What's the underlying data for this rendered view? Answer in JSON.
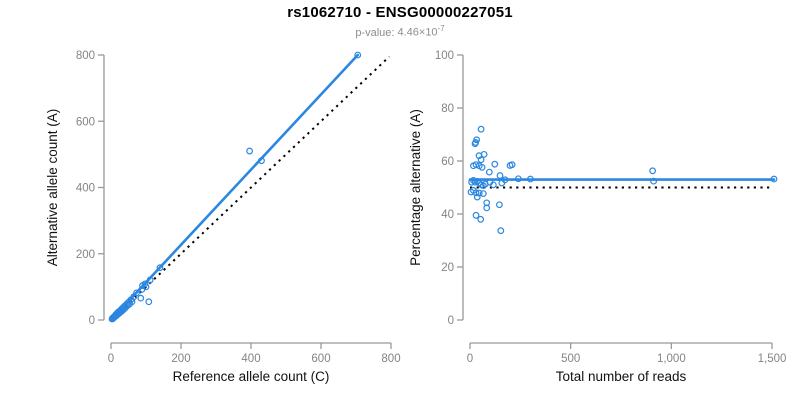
{
  "header": {
    "title": "rs1062710 - ENSG00000227051",
    "pvalue_label": "p-value:",
    "pvalue_mantissa": "4.46",
    "pvalue_times": "×",
    "pvalue_base": "10",
    "pvalue_exponent": "-7"
  },
  "colors": {
    "accent_blue": "#2b87e0",
    "reference_line_black": "#000000",
    "axis_gray": "#999999",
    "tick_label_gray": "#848484",
    "subtitle_gray": "#8e8e8e"
  },
  "chart_data": [
    {
      "type": "scatter",
      "xlabel": "Reference allele count (C)",
      "ylabel": "Alternative allele count (A)",
      "xlim": [
        0,
        800
      ],
      "ylim": [
        0,
        800
      ],
      "xticks": [
        0,
        200,
        400,
        600,
        800
      ],
      "xtick_labels": [
        "0",
        "200",
        "400",
        "600",
        "800"
      ],
      "yticks": [
        0,
        200,
        400,
        600,
        800
      ],
      "ytick_labels": [
        "0",
        "200",
        "400",
        "600",
        "800"
      ],
      "grid": false,
      "marker": "open-circle",
      "points": [
        [
          3,
          3
        ],
        [
          4,
          5
        ],
        [
          5,
          4
        ],
        [
          6,
          7
        ],
        [
          7,
          6
        ],
        [
          8,
          9
        ],
        [
          9,
          8
        ],
        [
          10,
          11
        ],
        [
          11,
          10
        ],
        [
          12,
          13
        ],
        [
          13,
          12
        ],
        [
          14,
          16
        ],
        [
          15,
          13
        ],
        [
          16,
          18
        ],
        [
          17,
          15
        ],
        [
          18,
          21
        ],
        [
          19,
          17
        ],
        [
          20,
          23
        ],
        [
          21,
          19
        ],
        [
          22,
          25
        ],
        [
          24,
          21
        ],
        [
          25,
          27
        ],
        [
          26,
          23
        ],
        [
          28,
          30
        ],
        [
          30,
          26
        ],
        [
          31,
          34
        ],
        [
          33,
          29
        ],
        [
          35,
          38
        ],
        [
          37,
          33
        ],
        [
          39,
          42
        ],
        [
          41,
          37
        ],
        [
          44,
          47
        ],
        [
          47,
          43
        ],
        [
          50,
          54
        ],
        [
          53,
          48
        ],
        [
          57,
          61
        ],
        [
          60,
          55
        ],
        [
          65,
          70
        ],
        [
          73,
          82
        ],
        [
          85,
          66
        ],
        [
          88,
          92
        ],
        [
          90,
          104
        ],
        [
          97,
          109
        ],
        [
          100,
          100
        ],
        [
          108,
          55
        ],
        [
          112,
          121
        ],
        [
          140,
          158
        ],
        [
          396,
          510
        ],
        [
          430,
          481
        ],
        [
          705,
          800
        ]
      ],
      "fit_line": {
        "x1": 0,
        "y1": 0,
        "x2": 705,
        "y2": 800,
        "style": "solid"
      },
      "reference_line": {
        "x1": 0,
        "y1": 0,
        "x2": 795,
        "y2": 795,
        "style": "dotted"
      }
    },
    {
      "type": "scatter",
      "xlabel": "Total number of reads",
      "ylabel": "Percentage alternative (A)",
      "xlim": [
        0,
        1500
      ],
      "ylim": [
        0,
        100
      ],
      "xticks": [
        0,
        500,
        1000,
        1500
      ],
      "xtick_labels": [
        "0",
        "500",
        "1,000",
        "1,500"
      ],
      "yticks": [
        0,
        20,
        40,
        60,
        80,
        100
      ],
      "ytick_labels": [
        "0",
        "20",
        "40",
        "60",
        "80",
        "100"
      ],
      "grid": false,
      "marker": "open-circle",
      "points": [
        [
          55,
          72
        ],
        [
          33,
          68
        ],
        [
          28,
          67
        ],
        [
          25,
          66.5
        ],
        [
          45,
          62
        ],
        [
          70,
          62.5
        ],
        [
          55,
          60.5
        ],
        [
          17,
          58.2
        ],
        [
          30,
          58.6
        ],
        [
          46,
          58.2
        ],
        [
          60,
          57.6
        ],
        [
          123,
          58.8
        ],
        [
          199,
          58.3
        ],
        [
          209,
          58.6
        ],
        [
          96,
          55.8
        ],
        [
          149,
          54.5
        ],
        [
          8,
          52
        ],
        [
          17,
          52.7
        ],
        [
          26,
          52
        ],
        [
          36,
          52.3
        ],
        [
          46,
          51.7
        ],
        [
          56,
          51
        ],
        [
          66,
          50.7
        ],
        [
          76,
          51.3
        ],
        [
          99,
          52
        ],
        [
          116,
          51
        ],
        [
          158,
          51.7
        ],
        [
          174,
          52.9
        ],
        [
          5,
          48.3
        ],
        [
          17,
          48.9
        ],
        [
          30,
          48
        ],
        [
          46,
          47.9
        ],
        [
          66,
          47.7
        ],
        [
          36,
          46.4
        ],
        [
          83,
          44.2
        ],
        [
          83,
          42.3
        ],
        [
          146,
          43.5
        ],
        [
          30,
          39.5
        ],
        [
          53,
          38
        ],
        [
          153,
          33.7
        ],
        [
          240,
          53.3
        ],
        [
          300,
          53.2
        ],
        [
          907,
          56.3
        ],
        [
          912,
          52.4
        ],
        [
          1510,
          53.2
        ]
      ],
      "fit_line": {
        "x1": 0,
        "y1": 53,
        "x2": 1510,
        "y2": 53,
        "style": "solid"
      },
      "reference_line": {
        "x1": 0,
        "y1": 50,
        "x2": 1500,
        "y2": 50,
        "style": "dotted"
      }
    }
  ]
}
